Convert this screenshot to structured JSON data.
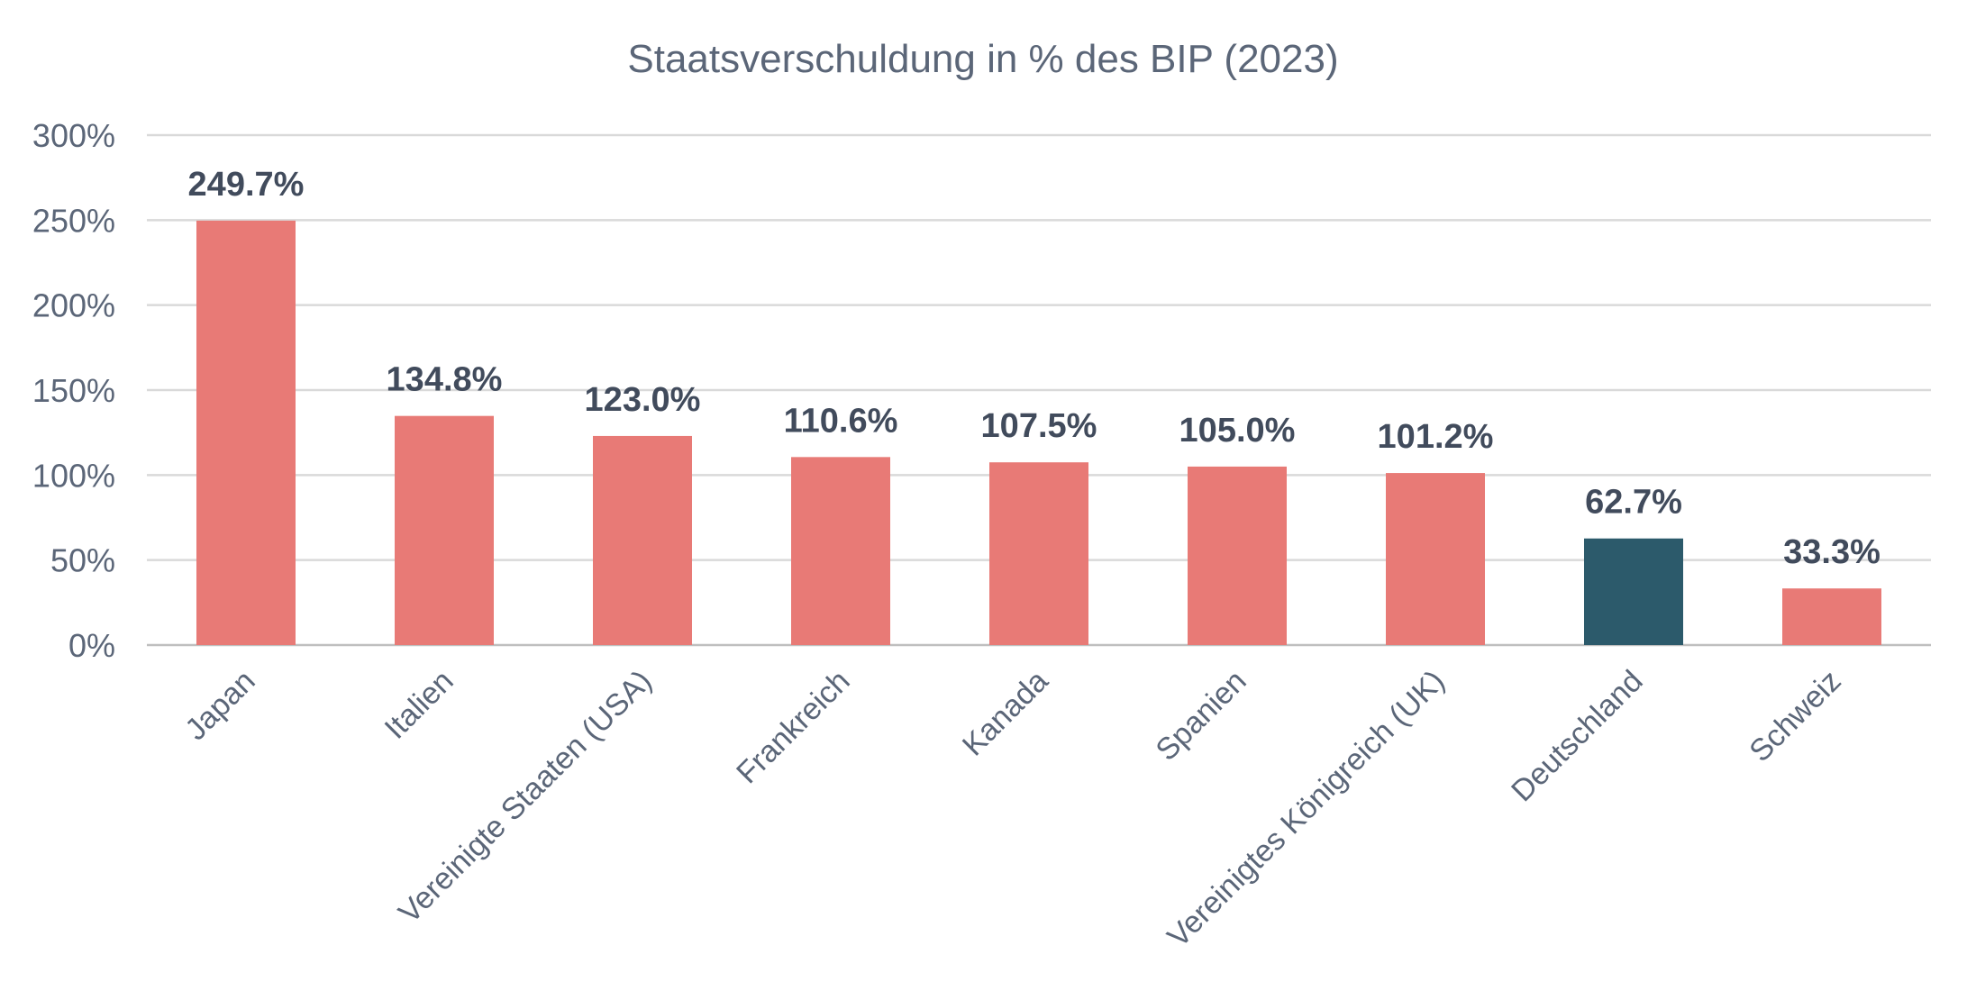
{
  "chart_data": {
    "type": "bar",
    "title": "Staatsverschuldung in % des BIP (2023)",
    "xlabel": "",
    "ylabel": "",
    "ylim": [
      0,
      300
    ],
    "y_ticks": [
      0,
      50,
      100,
      150,
      200,
      250,
      300
    ],
    "y_tick_labels": [
      "0%",
      "50%",
      "100%",
      "150%",
      "200%",
      "250%",
      "300%"
    ],
    "grid": true,
    "categories": [
      "Japan",
      "Italien",
      "Vereinigte Staaten (USA)",
      "Frankreich",
      "Kanada",
      "Spanien",
      "Vereinigtes Königreich (UK)",
      "Deutschland",
      "Schweiz"
    ],
    "values": [
      249.7,
      134.8,
      123.0,
      110.6,
      107.5,
      105.0,
      101.2,
      62.7,
      33.3
    ],
    "data_labels": [
      "249.7%",
      "134.8%",
      "123.0%",
      "110.6%",
      "107.5%",
      "105.0%",
      "101.2%",
      "62.7%",
      "33.3%"
    ],
    "highlight_category": "Deutschland",
    "colors": {
      "bar": "#e87a76",
      "highlight": "#2c5a6b",
      "label": "#414b5c",
      "axis_text": "#5b6678",
      "grid": "#d9d9d9"
    }
  }
}
